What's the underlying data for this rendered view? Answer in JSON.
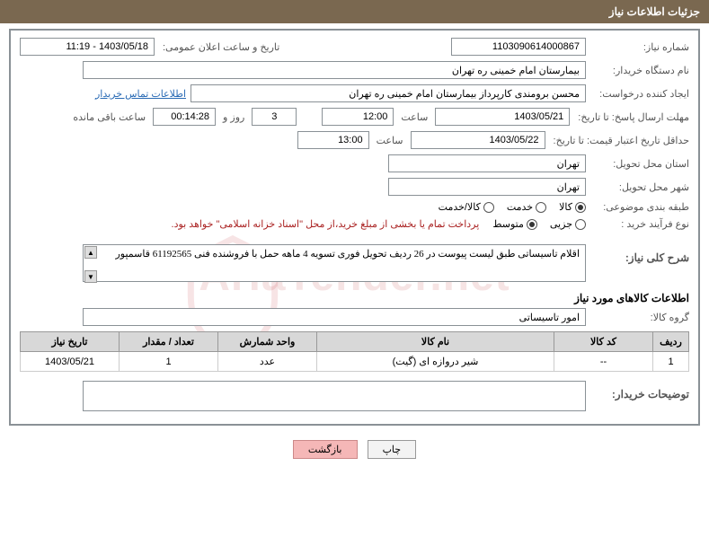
{
  "header": {
    "title": "جزئیات اطلاعات نیاز"
  },
  "labels": {
    "needNo": "شماره نیاز:",
    "announceDate": "تاریخ و ساعت اعلان عمومی:",
    "buyerOrg": "نام دستگاه خریدار:",
    "requester": "ایجاد کننده درخواست:",
    "replyDeadline": "مهلت ارسال پاسخ: تا تاریخ:",
    "hour": "ساعت",
    "days": "روز و",
    "remaining": "ساعت باقی مانده",
    "validityMin": "حداقل تاریخ اعتبار قیمت: تا تاریخ:",
    "deliveryProvince": "استان محل تحویل:",
    "deliveryCity": "شهر محل تحویل:",
    "category": "طبقه بندی موضوعی:",
    "procType": "نوع فرآیند خرید :",
    "contactLink": "اطلاعات تماس خریدار",
    "paymentNote": "پرداخت تمام یا بخشی از مبلغ خرید،از محل \"اسناد خزانه اسلامی\" خواهد بود.",
    "needDesc": "شرح کلی نیاز:",
    "itemsTitle": "اطلاعات کالاهای مورد نیاز",
    "goodsGroup": "گروه کالا:",
    "buyerNotes": "توضیحات خریدار:"
  },
  "fields": {
    "needNo": "1103090614000867",
    "announceDate": "1403/05/18 - 11:19",
    "buyerOrg": "بیمارستان امام خمینی ره  تهران",
    "requester": "محسن برومندی کارپرداز بیمارستان امام خمینی ره  تهران",
    "replyDate": "1403/05/21",
    "replyTime": "12:00",
    "remainingDays": "3",
    "remainingTime": "00:14:28",
    "validityDate": "1403/05/22",
    "validityTime": "13:00",
    "province": "تهران",
    "city": "تهران",
    "needDesc": "اقلام تاسیساتی طبق لیست پیوست در 26 ردیف تحویل فوری تسویه 4 ماهه حمل با فروشنده فنی 61192565 قاسمپور",
    "goodsGroup": "امور تاسیساتی",
    "buyerNotes": ""
  },
  "radios": {
    "category": [
      {
        "label": "کالا",
        "checked": true
      },
      {
        "label": "خدمت",
        "checked": false
      },
      {
        "label": "کالا/خدمت",
        "checked": false
      }
    ],
    "procType": [
      {
        "label": "جزیی",
        "checked": false
      },
      {
        "label": "متوسط",
        "checked": true
      }
    ]
  },
  "table": {
    "headers": {
      "idx": "ردیف",
      "code": "کد کالا",
      "name": "نام کالا",
      "unit": "واحد شمارش",
      "qty": "تعداد / مقدار",
      "date": "تاریخ نیاز"
    },
    "rows": [
      {
        "idx": "1",
        "code": "--",
        "name": "شیر دروازه ای (گیت)",
        "unit": "عدد",
        "qty": "1",
        "date": "1403/05/21"
      }
    ]
  },
  "buttons": {
    "print": "چاپ",
    "back": "بازگشت"
  },
  "watermark": "AriaTender.net"
}
